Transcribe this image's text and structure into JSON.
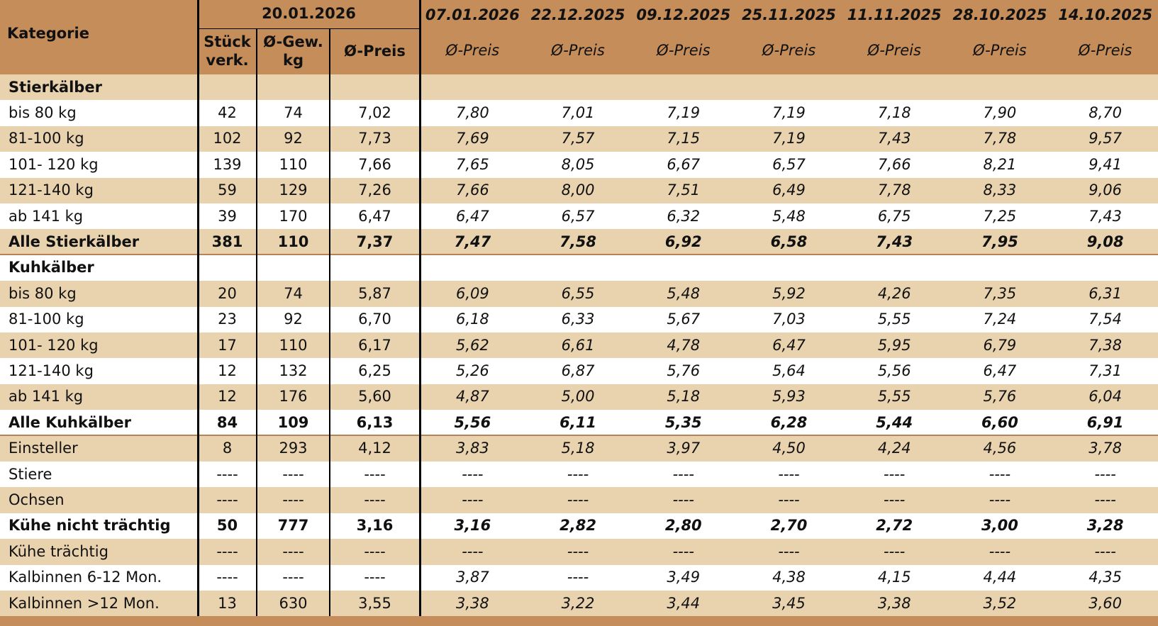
{
  "header": {
    "category_label": "Kategorie",
    "current_date": "20.01.2026",
    "current_columns": [
      "Stück verk.",
      "Ø-Gew. kg",
      "Ø-Preis"
    ],
    "past_columns": [
      {
        "date": "07.01.2026",
        "label": "Ø-Preis"
      },
      {
        "date": "22.12.2025",
        "label": "Ø-Preis"
      },
      {
        "date": "09.12.2025",
        "label": "Ø-Preis"
      },
      {
        "date": "25.11.2025",
        "label": "Ø-Preis"
      },
      {
        "date": "11.11.2025",
        "label": "Ø-Preis"
      },
      {
        "date": "28.10.2025",
        "label": "Ø-Preis"
      },
      {
        "date": "14.10.2025",
        "label": "Ø-Preis"
      }
    ]
  },
  "table": {
    "rows": [
      {
        "label": "Stierkälber",
        "style": "section",
        "cells": []
      },
      {
        "label": "bis 80 kg",
        "style": "normal",
        "cells": [
          "42",
          "74",
          "7,02",
          "7,80",
          "7,01",
          "7,19",
          "7,19",
          "7,18",
          "7,90",
          "8,70"
        ]
      },
      {
        "label": "81-100 kg",
        "style": "normal",
        "cells": [
          "102",
          "92",
          "7,73",
          "7,69",
          "7,57",
          "7,15",
          "7,19",
          "7,43",
          "7,78",
          "9,57"
        ]
      },
      {
        "label": "101- 120 kg",
        "style": "normal",
        "cells": [
          "139",
          "110",
          "7,66",
          "7,65",
          "8,05",
          "6,67",
          "6,57",
          "7,66",
          "8,21",
          "9,41"
        ]
      },
      {
        "label": "121-140 kg",
        "style": "normal",
        "cells": [
          "59",
          "129",
          "7,26",
          "7,66",
          "8,00",
          "7,51",
          "6,49",
          "7,78",
          "8,33",
          "9,06"
        ]
      },
      {
        "label": "ab 141 kg",
        "style": "normal",
        "cells": [
          "39",
          "170",
          "6,47",
          "6,47",
          "6,57",
          "6,32",
          "5,48",
          "6,75",
          "7,25",
          "7,43"
        ]
      },
      {
        "label": "Alle Stierkälber",
        "style": "total",
        "cells": [
          "381",
          "110",
          "7,37",
          "7,47",
          "7,58",
          "6,92",
          "6,58",
          "7,43",
          "7,95",
          "9,08"
        ]
      },
      {
        "label": "Kuhkälber",
        "style": "section",
        "cells": []
      },
      {
        "label": "bis 80 kg",
        "style": "normal",
        "cells": [
          "20",
          "74",
          "5,87",
          "6,09",
          "6,55",
          "5,48",
          "5,92",
          "4,26",
          "7,35",
          "6,31"
        ]
      },
      {
        "label": "81-100 kg",
        "style": "normal",
        "cells": [
          "23",
          "92",
          "6,70",
          "6,18",
          "6,33",
          "5,67",
          "7,03",
          "5,55",
          "7,24",
          "7,54"
        ]
      },
      {
        "label": "101- 120 kg",
        "style": "normal",
        "cells": [
          "17",
          "110",
          "6,17",
          "5,62",
          "6,61",
          "4,78",
          "6,47",
          "5,95",
          "6,79",
          "7,38"
        ]
      },
      {
        "label": "121-140 kg",
        "style": "normal",
        "cells": [
          "12",
          "132",
          "6,25",
          "5,26",
          "6,87",
          "5,76",
          "5,64",
          "5,56",
          "6,47",
          "7,31"
        ]
      },
      {
        "label": "ab 141 kg",
        "style": "normal",
        "cells": [
          "12",
          "176",
          "5,60",
          "4,87",
          "5,00",
          "5,18",
          "5,93",
          "5,55",
          "5,76",
          "6,04"
        ]
      },
      {
        "label": "Alle Kuhkälber",
        "style": "total",
        "cells": [
          "84",
          "109",
          "6,13",
          "5,56",
          "6,11",
          "5,35",
          "6,28",
          "5,44",
          "6,60",
          "6,91"
        ]
      },
      {
        "label": "Einsteller",
        "style": "normal",
        "cells": [
          "8",
          "293",
          "4,12",
          "3,83",
          "5,18",
          "3,97",
          "4,50",
          "4,24",
          "4,56",
          "3,78"
        ]
      },
      {
        "label": "Stiere",
        "style": "normal",
        "cells": [
          "----",
          "----",
          "----",
          "----",
          "----",
          "----",
          "----",
          "----",
          "----",
          "----"
        ]
      },
      {
        "label": "Ochsen",
        "style": "normal",
        "cells": [
          "----",
          "----",
          "----",
          "----",
          "----",
          "----",
          "----",
          "----",
          "----",
          "----"
        ]
      },
      {
        "label": "Kühe nicht trächtig",
        "style": "bold",
        "cells": [
          "50",
          "777",
          "3,16",
          "3,16",
          "2,82",
          "2,80",
          "2,70",
          "2,72",
          "3,00",
          "3,28"
        ]
      },
      {
        "label": "Kühe trächtig",
        "style": "normal",
        "cells": [
          "----",
          "----",
          "----",
          "----",
          "----",
          "----",
          "----",
          "----",
          "----",
          "----"
        ]
      },
      {
        "label": "Kalbinnen 6-12 Mon.",
        "style": "normal",
        "cells": [
          "----",
          "----",
          "----",
          "3,87",
          "----",
          "3,49",
          "4,38",
          "4,15",
          "4,44",
          "4,35"
        ]
      },
      {
        "label": "Kalbinnen >12 Mon.",
        "style": "normal",
        "cells": [
          "13",
          "630",
          "3,55",
          "3,38",
          "3,22",
          "3,44",
          "3,45",
          "3,38",
          "3,52",
          "3,60"
        ]
      }
    ]
  }
}
